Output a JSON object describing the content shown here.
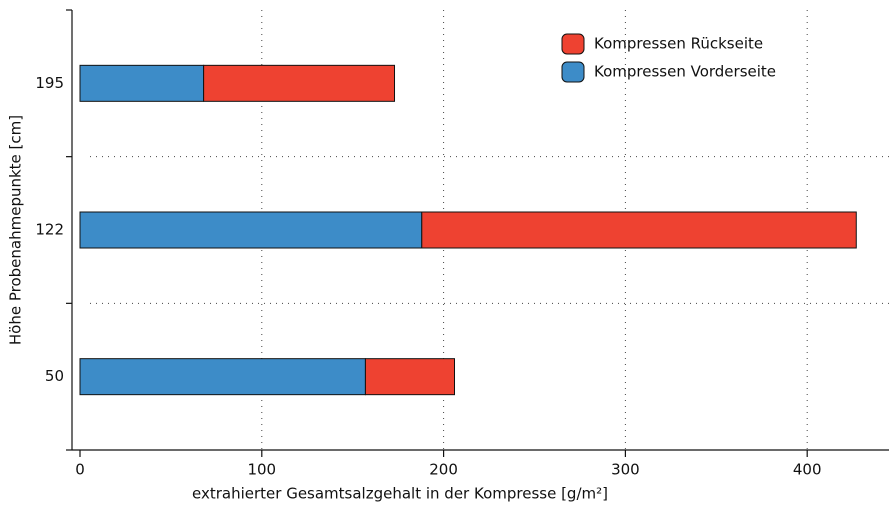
{
  "chart_data": {
    "type": "bar",
    "orientation": "horizontal",
    "stacked": true,
    "xlabel": "extrahierter Gesamtsalzgehalt in der Kompresse [g/m²]",
    "ylabel": "Höhe Probenahmepunkte [cm]",
    "categories": [
      "195",
      "122",
      "50"
    ],
    "series": [
      {
        "name": "Kompressen Vorderseite",
        "color": "#3d8cc8",
        "values": [
          68,
          188,
          157
        ]
      },
      {
        "name": "Kompressen Rückseite",
        "color": "#ee4231",
        "values": [
          105,
          239,
          49
        ]
      }
    ],
    "xlim": [
      0,
      445
    ],
    "xticks": [
      0,
      100,
      200,
      300,
      400
    ],
    "grid": true,
    "legend": "upper right"
  }
}
